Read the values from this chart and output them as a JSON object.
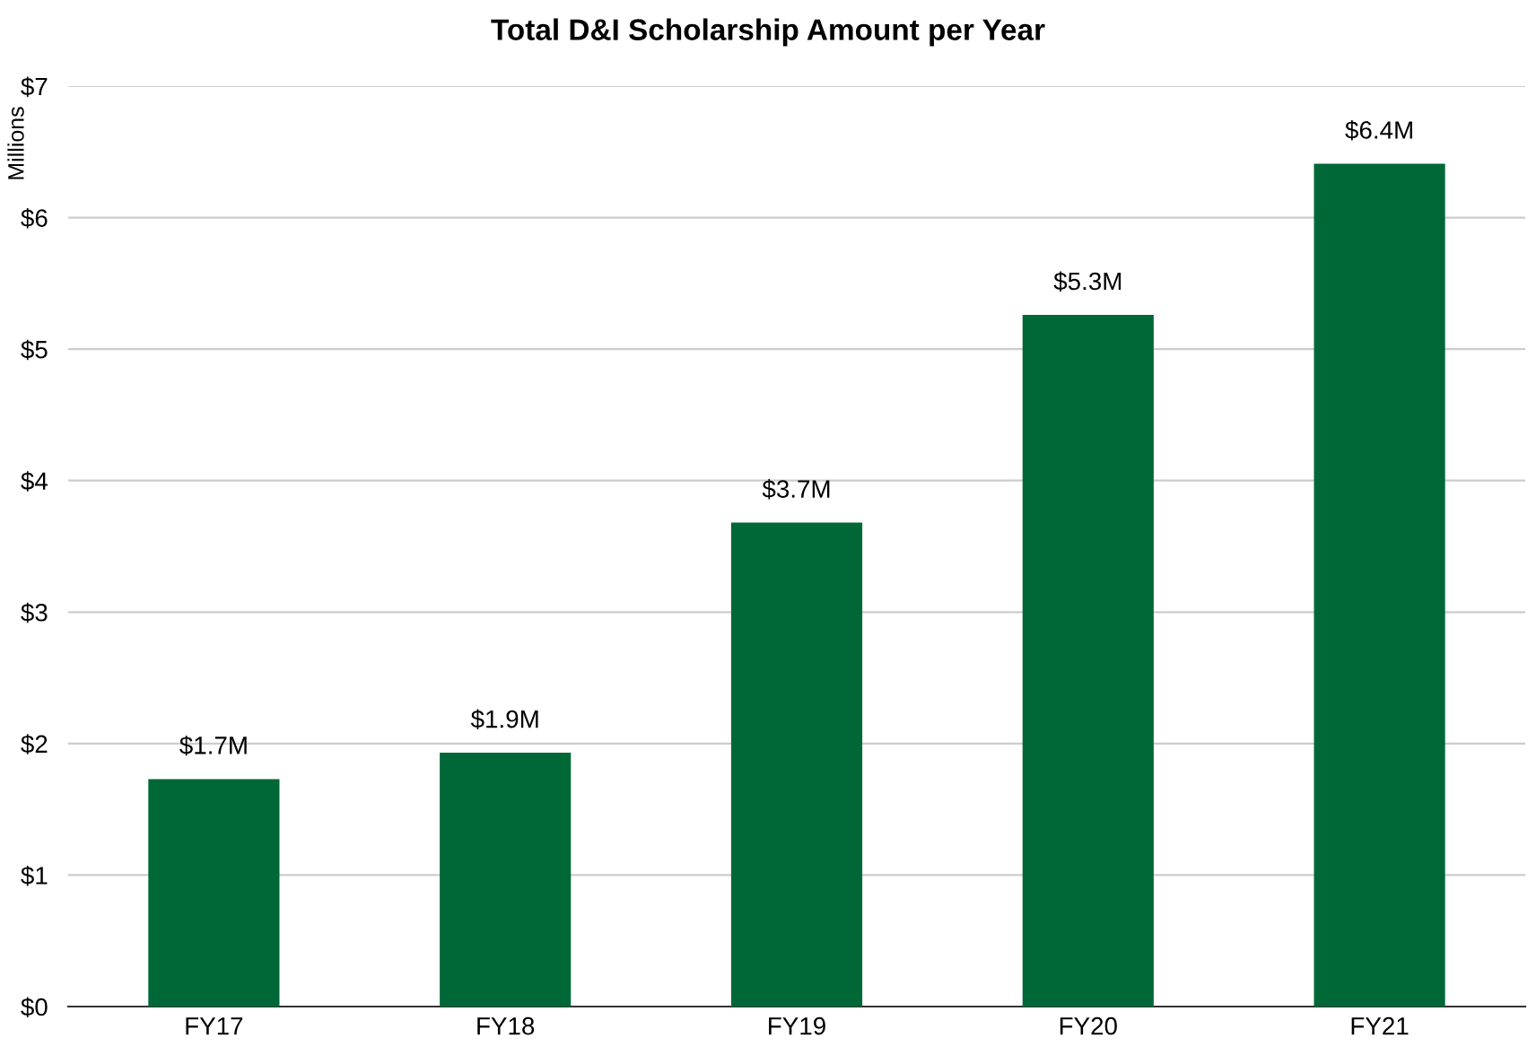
{
  "chart_data": {
    "type": "bar",
    "title": "Total D&I Scholarship Amount per Year",
    "ylabel": "Millions",
    "categories": [
      "FY17",
      "FY18",
      "FY19",
      "FY20",
      "FY21"
    ],
    "values": [
      1.73,
      1.93,
      3.68,
      5.26,
      6.41
    ],
    "value_labels": [
      "$1.7M",
      "$1.9M",
      "$3.7M",
      "$5.3M",
      "$6.4M"
    ],
    "color": "#006837",
    "ylim": [
      0,
      7
    ],
    "yticks": [
      {
        "value": 0,
        "label": "$0"
      },
      {
        "value": 1,
        "label": "$1"
      },
      {
        "value": 2,
        "label": "$2"
      },
      {
        "value": 3,
        "label": "$3"
      },
      {
        "value": 4,
        "label": "$4"
      },
      {
        "value": 5,
        "label": "$5"
      },
      {
        "value": 6,
        "label": "$6"
      },
      {
        "value": 7,
        "label": "$7"
      }
    ],
    "grid": "y"
  }
}
